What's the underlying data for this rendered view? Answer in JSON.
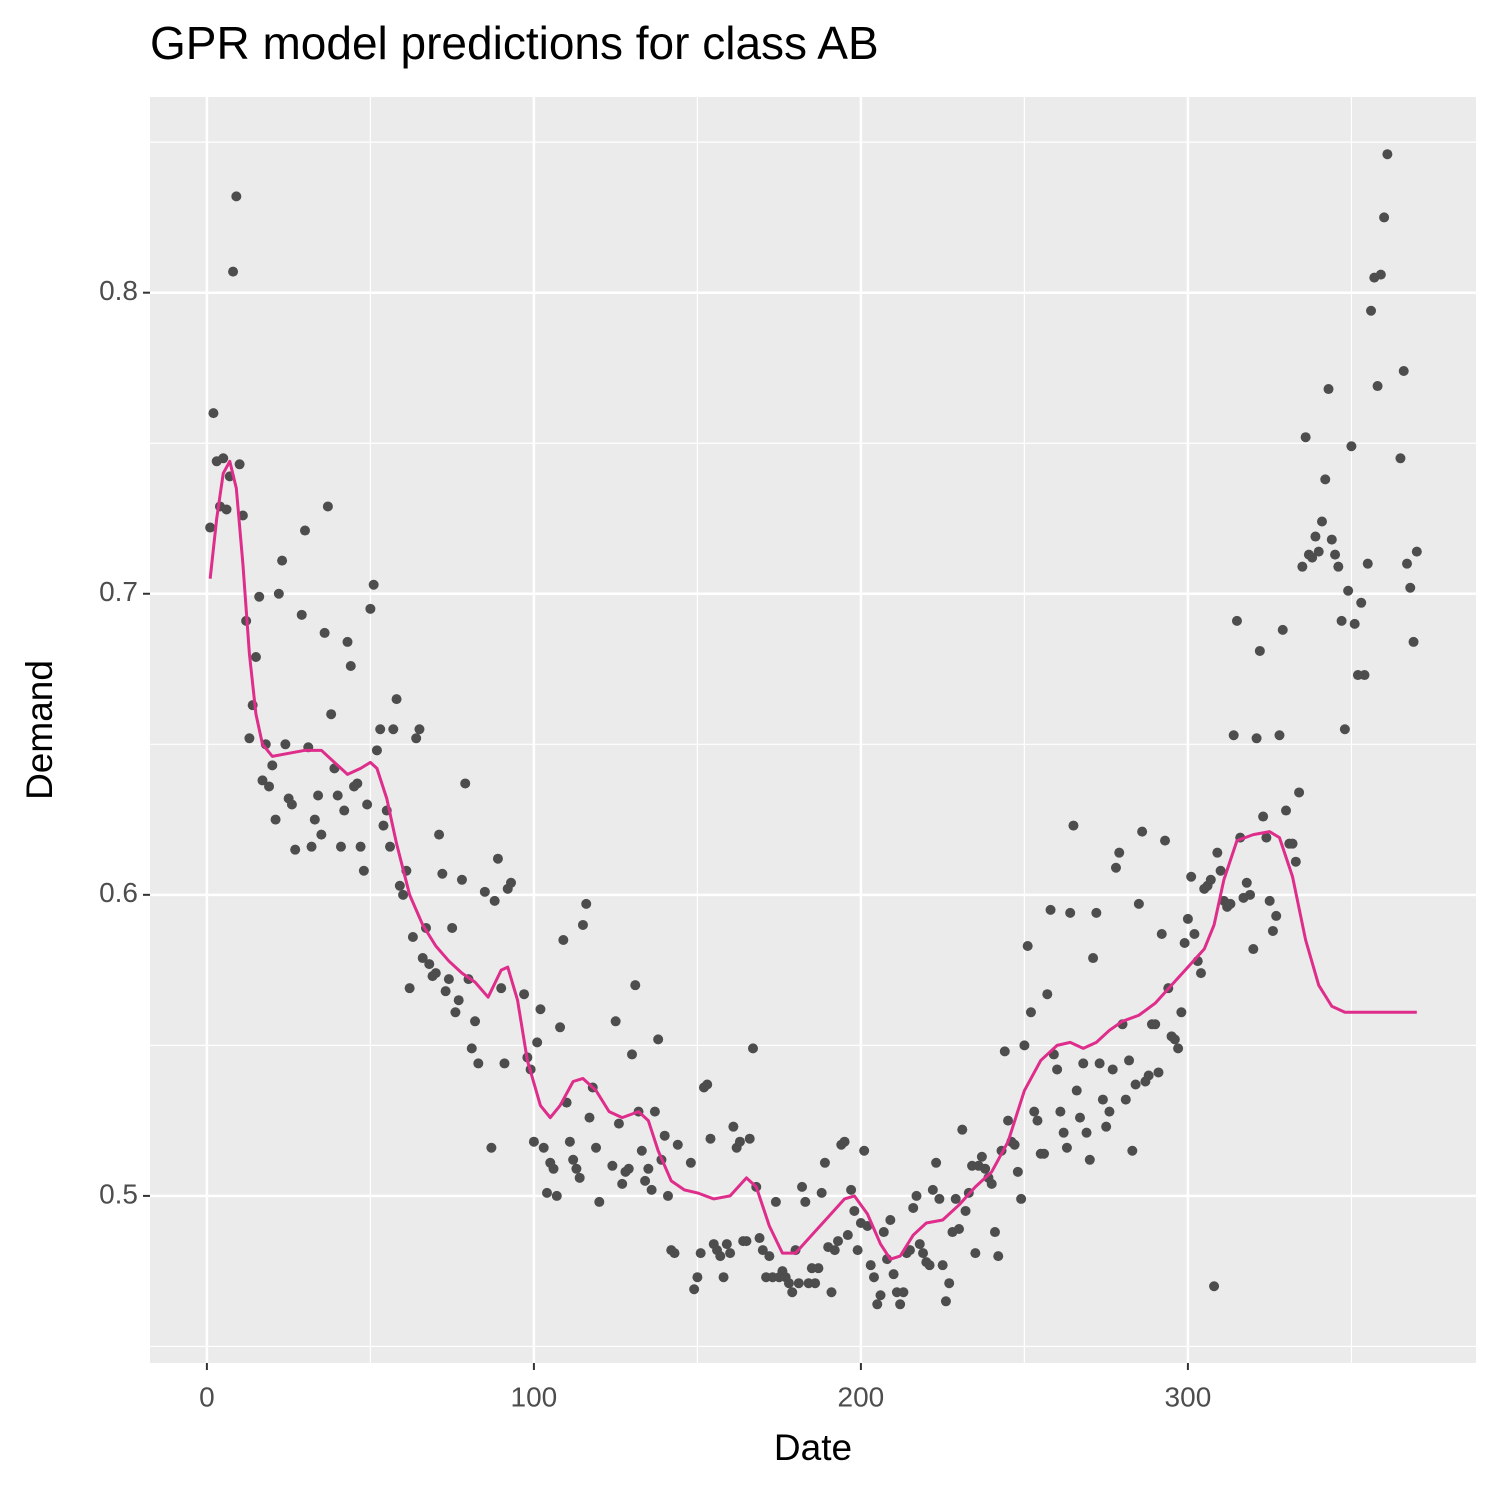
{
  "chart_data": {
    "type": "scatter",
    "title": "GPR model predictions for class AB",
    "x_label": "Date",
    "y_label": "Demand",
    "xlim": [
      -17.4,
      388.1
    ],
    "ylim": [
      0.4445,
      0.865
    ],
    "xticks": [
      0,
      100,
      200,
      300
    ],
    "yticks": [
      0.5,
      0.6,
      0.7,
      0.8
    ],
    "xminor": [
      50,
      150,
      250,
      350
    ],
    "yminor": [
      0.45,
      0.55,
      0.65,
      0.75,
      0.85
    ],
    "grid": true,
    "series": [
      {
        "type": "scatter",
        "color": "#4d4d4d",
        "x": [
          1,
          2,
          3,
          4,
          5,
          6,
          7,
          8,
          9,
          10,
          11,
          12,
          13,
          14,
          15,
          16,
          17,
          18,
          19,
          20,
          21,
          22,
          23,
          24,
          25,
          26,
          27,
          29,
          30,
          31,
          32,
          33,
          34,
          35,
          36,
          37,
          38,
          39,
          40,
          41,
          42,
          43,
          44,
          45,
          46,
          47,
          48,
          49,
          50,
          51,
          52,
          53,
          54,
          55,
          56,
          57,
          58,
          59,
          60,
          61,
          62,
          63,
          64,
          65,
          66,
          67,
          68,
          69,
          70,
          71,
          72,
          73,
          74,
          75,
          76,
          77,
          78,
          79,
          80,
          81,
          82,
          83,
          85,
          87,
          88,
          89,
          90,
          91,
          92,
          93,
          97,
          98,
          99,
          100,
          101,
          102,
          103,
          104,
          105,
          106,
          107,
          108,
          109,
          110,
          111,
          112,
          113,
          114,
          115,
          116,
          117,
          118,
          119,
          120,
          124,
          125,
          126,
          127,
          128,
          129,
          130,
          131,
          132,
          133,
          134,
          135,
          136,
          137,
          138,
          139,
          140,
          141,
          142,
          143,
          144,
          148,
          149,
          150,
          151,
          152,
          153,
          154,
          155,
          156,
          157,
          158,
          159,
          160,
          161,
          162,
          163,
          164,
          165,
          166,
          167,
          168,
          169,
          170,
          171,
          172,
          173,
          174,
          175,
          176,
          177,
          178,
          179,
          180,
          181,
          182,
          183,
          184,
          185,
          186,
          187,
          188,
          189,
          190,
          191,
          192,
          193,
          194,
          195,
          196,
          197,
          198,
          199,
          200,
          201,
          202,
          203,
          204,
          205,
          206,
          207,
          208,
          209,
          210,
          211,
          212,
          213,
          214,
          215,
          216,
          217,
          218,
          219,
          220,
          221,
          222,
          223,
          224,
          225,
          226,
          227,
          228,
          229,
          230,
          231,
          232,
          233,
          234,
          235,
          236,
          237,
          238,
          239,
          240,
          241,
          242,
          243,
          244,
          245,
          246,
          247,
          248,
          249,
          250,
          251,
          252,
          253,
          254,
          255,
          256,
          257,
          258,
          259,
          260,
          261,
          262,
          263,
          264,
          265,
          266,
          267,
          268,
          269,
          270,
          271,
          272,
          273,
          274,
          275,
          276,
          277,
          278,
          279,
          280,
          281,
          282,
          283,
          284,
          285,
          286,
          287,
          288,
          289,
          290,
          291,
          292,
          293,
          294,
          295,
          296,
          297,
          298,
          299,
          300,
          301,
          302,
          303,
          304,
          305,
          306,
          307,
          308,
          309,
          310,
          311,
          312,
          313,
          314,
          315,
          316,
          317,
          318,
          319,
          320,
          321,
          322,
          323,
          324,
          325,
          326,
          327,
          328,
          329,
          330,
          331,
          332,
          333,
          334,
          335,
          336,
          337,
          338,
          339,
          340,
          341,
          342,
          343,
          344,
          345,
          346,
          347,
          348,
          349,
          350,
          351,
          352,
          353,
          354,
          355,
          356,
          357,
          358,
          359,
          360,
          361,
          365,
          366,
          367,
          368,
          369,
          370
        ],
        "values": [
          0.722,
          0.76,
          0.744,
          0.729,
          0.745,
          0.728,
          0.739,
          0.807,
          0.832,
          0.743,
          0.726,
          0.691,
          0.652,
          0.663,
          0.679,
          0.699,
          0.638,
          0.65,
          0.636,
          0.643,
          0.625,
          0.7,
          0.711,
          0.65,
          0.632,
          0.63,
          0.615,
          0.693,
          0.721,
          0.649,
          0.616,
          0.625,
          0.633,
          0.62,
          0.687,
          0.729,
          0.66,
          0.642,
          0.633,
          0.616,
          0.628,
          0.684,
          0.676,
          0.636,
          0.637,
          0.616,
          0.608,
          0.63,
          0.695,
          0.703,
          0.648,
          0.655,
          0.623,
          0.628,
          0.616,
          0.655,
          0.665,
          0.603,
          0.6,
          0.608,
          0.569,
          0.586,
          0.652,
          0.655,
          0.579,
          0.589,
          0.577,
          0.573,
          0.574,
          0.62,
          0.607,
          0.568,
          0.572,
          0.589,
          0.561,
          0.565,
          0.605,
          0.637,
          0.572,
          0.549,
          0.558,
          0.544,
          0.601,
          0.516,
          0.598,
          0.612,
          0.569,
          0.544,
          0.602,
          0.604,
          0.567,
          0.546,
          0.542,
          0.518,
          0.551,
          0.562,
          0.516,
          0.501,
          0.511,
          0.509,
          0.5,
          0.556,
          0.585,
          0.531,
          0.518,
          0.512,
          0.509,
          0.506,
          0.59,
          0.597,
          0.526,
          0.536,
          0.516,
          0.498,
          0.51,
          0.558,
          0.524,
          0.504,
          0.508,
          0.509,
          0.547,
          0.57,
          0.528,
          0.515,
          0.505,
          0.509,
          0.502,
          0.528,
          0.552,
          0.512,
          0.52,
          0.5,
          0.482,
          0.481,
          0.517,
          0.511,
          0.469,
          0.473,
          0.481,
          0.536,
          0.537,
          0.519,
          0.484,
          0.482,
          0.48,
          0.473,
          0.484,
          0.481,
          0.523,
          0.516,
          0.518,
          0.485,
          0.485,
          0.519,
          0.549,
          0.503,
          0.486,
          0.482,
          0.473,
          0.48,
          0.473,
          0.498,
          0.473,
          0.475,
          0.473,
          0.471,
          0.468,
          0.482,
          0.471,
          0.503,
          0.498,
          0.471,
          0.476,
          0.471,
          0.476,
          0.501,
          0.511,
          0.483,
          0.468,
          0.482,
          0.485,
          0.517,
          0.518,
          0.487,
          0.502,
          0.495,
          0.482,
          0.491,
          0.515,
          0.49,
          0.477,
          0.473,
          0.464,
          0.467,
          0.488,
          0.479,
          0.492,
          0.474,
          0.468,
          0.464,
          0.468,
          0.481,
          0.482,
          0.496,
          0.5,
          0.484,
          0.481,
          0.478,
          0.477,
          0.502,
          0.511,
          0.499,
          0.477,
          0.465,
          0.471,
          0.488,
          0.499,
          0.489,
          0.522,
          0.495,
          0.501,
          0.51,
          0.481,
          0.51,
          0.513,
          0.509,
          0.506,
          0.504,
          0.488,
          0.48,
          0.515,
          0.548,
          0.525,
          0.518,
          0.517,
          0.508,
          0.499,
          0.55,
          0.583,
          0.561,
          0.528,
          0.525,
          0.514,
          0.514,
          0.567,
          0.595,
          0.547,
          0.542,
          0.528,
          0.521,
          0.516,
          0.594,
          0.623,
          0.535,
          0.526,
          0.544,
          0.521,
          0.512,
          0.579,
          0.594,
          0.544,
          0.532,
          0.523,
          0.528,
          0.542,
          0.609,
          0.614,
          0.557,
          0.532,
          0.545,
          0.515,
          0.537,
          0.597,
          0.621,
          0.538,
          0.54,
          0.557,
          0.557,
          0.541,
          0.587,
          0.618,
          0.569,
          0.553,
          0.552,
          0.549,
          0.561,
          0.584,
          0.592,
          0.606,
          0.587,
          0.578,
          0.574,
          0.602,
          0.603,
          0.605,
          0.47,
          0.614,
          0.608,
          0.598,
          0.596,
          0.597,
          0.653,
          0.691,
          0.619,
          0.599,
          0.604,
          0.6,
          0.582,
          0.652,
          0.681,
          0.626,
          0.619,
          0.598,
          0.588,
          0.593,
          0.653,
          0.688,
          0.628,
          0.617,
          0.617,
          0.611,
          0.634,
          0.709,
          0.752,
          0.713,
          0.712,
          0.719,
          0.714,
          0.724,
          0.738,
          0.768,
          0.718,
          0.713,
          0.709,
          0.691,
          0.655,
          0.701,
          0.749,
          0.69,
          0.673,
          0.697,
          0.673,
          0.71,
          0.794,
          0.805,
          0.769,
          0.806,
          0.825,
          0.846,
          0.745,
          0.774,
          0.71,
          0.702,
          0.684,
          0.714
        ]
      },
      {
        "type": "line",
        "color": "#de2d8a",
        "x": [
          1,
          3,
          5,
          7,
          9,
          11,
          13,
          15,
          17,
          20,
          25,
          30,
          35,
          40,
          43,
          47,
          50,
          52,
          55,
          58,
          62,
          66,
          70,
          74,
          78,
          82,
          86,
          90,
          92,
          95,
          98,
          102,
          105,
          108,
          112,
          115,
          119,
          123,
          127,
          132,
          135,
          138,
          142,
          146,
          150,
          155,
          160,
          165,
          168,
          172,
          176,
          180,
          185,
          190,
          195,
          198,
          202,
          206,
          209,
          212,
          216,
          220,
          225,
          230,
          235,
          240,
          245,
          250,
          255,
          260,
          264,
          268,
          272,
          276,
          280,
          285,
          290,
          295,
          300,
          305,
          308,
          311,
          315,
          320,
          325,
          328,
          332,
          336,
          340,
          344,
          348,
          355,
          362,
          370
        ],
        "values": [
          0.705,
          0.725,
          0.74,
          0.744,
          0.735,
          0.71,
          0.68,
          0.66,
          0.65,
          0.646,
          0.647,
          0.648,
          0.648,
          0.643,
          0.64,
          0.642,
          0.644,
          0.642,
          0.632,
          0.617,
          0.6,
          0.59,
          0.583,
          0.578,
          0.574,
          0.571,
          0.566,
          0.575,
          0.576,
          0.565,
          0.545,
          0.53,
          0.526,
          0.53,
          0.538,
          0.539,
          0.535,
          0.528,
          0.526,
          0.528,
          0.525,
          0.515,
          0.505,
          0.502,
          0.501,
          0.499,
          0.5,
          0.506,
          0.503,
          0.49,
          0.481,
          0.481,
          0.487,
          0.493,
          0.499,
          0.5,
          0.494,
          0.484,
          0.479,
          0.48,
          0.487,
          0.491,
          0.492,
          0.497,
          0.503,
          0.508,
          0.518,
          0.535,
          0.545,
          0.55,
          0.551,
          0.549,
          0.551,
          0.555,
          0.558,
          0.56,
          0.564,
          0.57,
          0.576,
          0.582,
          0.59,
          0.605,
          0.618,
          0.62,
          0.621,
          0.619,
          0.606,
          0.585,
          0.57,
          0.563,
          0.561,
          0.561,
          0.561,
          0.561
        ]
      }
    ]
  }
}
